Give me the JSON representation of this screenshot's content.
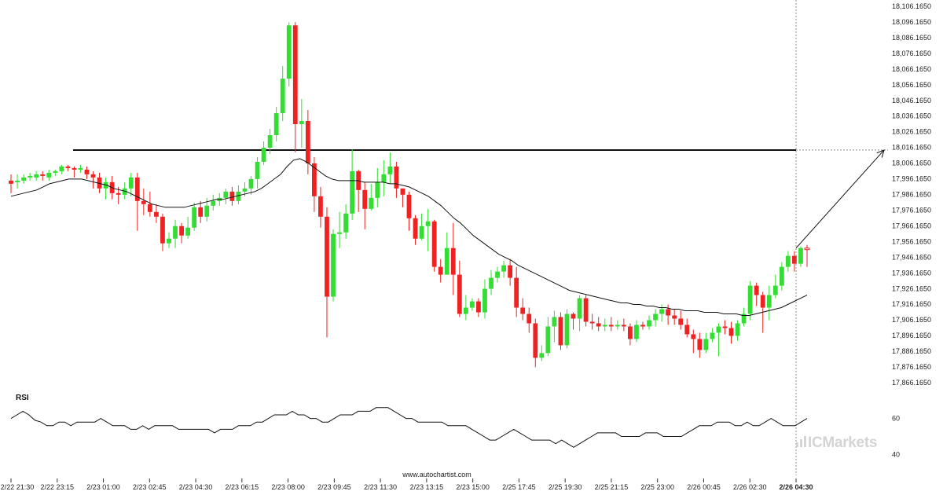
{
  "chart_data": {
    "type": "candlestick",
    "title": "",
    "xlabel": "",
    "ylabel": "",
    "ylim": [
      17856.165,
      18108.165
    ],
    "y_ticks": [
      "18,106.1650",
      "18,096.1650",
      "18,086.1650",
      "18,076.1650",
      "18,066.1650",
      "18,056.1650",
      "18,046.1650",
      "18,036.1650",
      "18,026.1650",
      "18,016.1650",
      "18,006.1650",
      "17,996.1650",
      "17,986.1650",
      "17,976.1650",
      "17,966.1650",
      "17,956.1650",
      "17,946.1650",
      "17,936.1650",
      "17,926.1650",
      "17,916.1650",
      "17,906.1650",
      "17,896.1650",
      "17,886.1650",
      "17,876.1650",
      "17,866.1650"
    ],
    "x_ticks": [
      "2/22 21:30",
      "2/22 23:15",
      "2/23 01:00",
      "2/23 02:45",
      "2/23 04:30",
      "2/23 06:15",
      "2/23 08:00",
      "2/23 09:45",
      "2/23 11:30",
      "2/23 13:15",
      "2/23 15:00",
      "2/25 17:45",
      "2/25 19:30",
      "2/25 21:15",
      "2/25 23:00",
      "2/26 00:45",
      "2/26 02:30",
      "2/26 04:30"
    ],
    "x_ticks_bold_index": 17,
    "resistance_level": 18014.5,
    "projection": {
      "from": 17952.0,
      "to": 18014.5
    },
    "candles": [
      [
        17995,
        17993,
        17999,
        17987
      ],
      [
        17994,
        17995,
        17999,
        17990
      ],
      [
        17995,
        17997,
        17999,
        17993
      ],
      [
        17997,
        17998,
        18000,
        17995
      ],
      [
        17997,
        17999,
        18001,
        17995
      ],
      [
        17999,
        17998,
        18001,
        17995
      ],
      [
        17997,
        18000,
        18002,
        17995
      ],
      [
        18000,
        18001,
        18002,
        17998
      ],
      [
        18001,
        18004,
        18005,
        17999
      ],
      [
        18004,
        18003,
        18005,
        18001
      ],
      [
        18003,
        18002,
        18004,
        17997
      ],
      [
        18002,
        18003,
        18005,
        18000
      ],
      [
        18002,
        17999,
        18004,
        17996
      ],
      [
        17999,
        17997,
        18001,
        17990
      ],
      [
        17997,
        17990,
        18000,
        17987
      ],
      [
        17990,
        17994,
        17997,
        17983
      ],
      [
        17994,
        17987,
        17998,
        17983
      ],
      [
        17987,
        17986,
        17991,
        17980
      ],
      [
        17986,
        17990,
        17994,
        17983
      ],
      [
        17990,
        17997,
        18000,
        17985
      ],
      [
        17997,
        17982,
        18000,
        17963
      ],
      [
        17982,
        17980,
        17990,
        17973
      ],
      [
        17980,
        17975,
        17988,
        17972
      ],
      [
        17975,
        17972,
        17980,
        17968
      ],
      [
        17972,
        17955,
        17974,
        17950
      ],
      [
        17955,
        17958,
        17962,
        17952
      ],
      [
        17958,
        17966,
        17970,
        17952
      ],
      [
        17966,
        17960,
        17968,
        17955
      ],
      [
        17960,
        17965,
        17972,
        17958
      ],
      [
        17965,
        17978,
        17981,
        17963
      ],
      [
        17978,
        17972,
        17982,
        17968
      ],
      [
        17972,
        17979,
        17984,
        17969
      ],
      [
        17979,
        17982,
        17986,
        17976
      ],
      [
        17982,
        17984,
        17987,
        17979
      ],
      [
        17984,
        17988,
        17990,
        17980
      ],
      [
        17988,
        17982,
        17991,
        17979
      ],
      [
        17982,
        17988,
        17992,
        17980
      ],
      [
        17988,
        17990,
        17994,
        17985
      ],
      [
        17990,
        17996,
        17998,
        17986
      ],
      [
        17996,
        18007,
        18010,
        17990
      ],
      [
        18007,
        18016,
        18020,
        18005
      ],
      [
        18016,
        18024,
        18028,
        18012
      ],
      [
        18024,
        18038,
        18042,
        18020
      ],
      [
        18038,
        18060,
        18068,
        18033
      ],
      [
        18060,
        18094,
        18096,
        18055
      ],
      [
        18094,
        18031,
        18096,
        18013
      ],
      [
        18031,
        18033,
        18047,
        18016
      ],
      [
        18033,
        18006,
        18040,
        17999
      ],
      [
        18006,
        17985,
        18010,
        17975
      ],
      [
        17985,
        17972,
        17991,
        17965
      ],
      [
        17972,
        17921,
        17978,
        17895
      ],
      [
        17921,
        17961,
        17964,
        17918
      ],
      [
        17961,
        17962,
        17975,
        17952
      ],
      [
        17962,
        17974,
        17980,
        17958
      ],
      [
        17974,
        18001,
        18015,
        17970
      ],
      [
        18001,
        17989,
        18002,
        17975
      ],
      [
        17989,
        17977,
        17994,
        17964
      ],
      [
        17977,
        17984,
        17993,
        17976
      ],
      [
        17984,
        17994,
        18003,
        17978
      ],
      [
        17994,
        17999,
        18008,
        17985
      ],
      [
        17999,
        18004,
        18013,
        17993
      ],
      [
        18004,
        17990,
        18007,
        17984
      ],
      [
        17990,
        17986,
        17990,
        17978
      ],
      [
        17986,
        17971,
        17988,
        17963
      ],
      [
        17971,
        17958,
        17973,
        17954
      ],
      [
        17958,
        17966,
        17974,
        17957
      ],
      [
        17966,
        17969,
        17977,
        17950
      ],
      [
        17969,
        17940,
        17970,
        17937
      ],
      [
        17940,
        17935,
        17945,
        17930
      ],
      [
        17935,
        17952,
        17962,
        17938
      ],
      [
        17952,
        17935,
        17968,
        17922
      ],
      [
        17935,
        17910,
        17944,
        17908
      ],
      [
        17910,
        17914,
        17922,
        17906
      ],
      [
        17914,
        17918,
        17920,
        17912
      ],
      [
        17918,
        17911,
        17920,
        17908
      ],
      [
        17911,
        17926,
        17932,
        17907
      ],
      [
        17926,
        17933,
        17938,
        17922
      ],
      [
        17933,
        17937,
        17940,
        17930
      ],
      [
        17937,
        17941,
        17944,
        17933
      ],
      [
        17941,
        17933,
        17945,
        17928
      ],
      [
        17933,
        17914,
        17940,
        17908
      ],
      [
        17914,
        17910,
        17920,
        17906
      ],
      [
        17910,
        17904,
        17914,
        17898
      ],
      [
        17904,
        17882,
        17907,
        17876
      ],
      [
        17882,
        17885,
        17890,
        17880
      ],
      [
        17885,
        17902,
        17908,
        17883
      ],
      [
        17902,
        17908,
        17912,
        17892
      ],
      [
        17908,
        17890,
        17911,
        17887
      ],
      [
        17890,
        17910,
        17913,
        17888
      ],
      [
        17910,
        17907,
        17911,
        17900
      ],
      [
        17907,
        17920,
        17922,
        17899
      ],
      [
        17920,
        17905,
        17922,
        17902
      ],
      [
        17905,
        17904,
        17910,
        17900
      ],
      [
        17904,
        17902,
        17908,
        17899
      ],
      [
        17902,
        17903,
        17907,
        17899
      ],
      [
        17903,
        17902,
        17908,
        17899
      ],
      [
        17902,
        17903,
        17906,
        17900
      ],
      [
        17903,
        17902,
        17907,
        17899
      ],
      [
        17902,
        17894,
        17904,
        17890
      ],
      [
        17894,
        17903,
        17906,
        17892
      ],
      [
        17903,
        17902,
        17905,
        17900
      ],
      [
        17902,
        17906,
        17909,
        17900
      ],
      [
        17906,
        17910,
        17913,
        17902
      ],
      [
        17910,
        17913,
        17916,
        17905
      ],
      [
        17913,
        17909,
        17916,
        17903
      ],
      [
        17909,
        17907,
        17913,
        17903
      ],
      [
        17907,
        17903,
        17912,
        17900
      ],
      [
        17903,
        17897,
        17907,
        17895
      ],
      [
        17897,
        17894,
        17900,
        17885
      ],
      [
        17894,
        17887,
        17898,
        17882
      ],
      [
        17887,
        17894,
        17898,
        17885
      ],
      [
        17894,
        17898,
        17901,
        17892
      ],
      [
        17898,
        17902,
        17904,
        17883
      ],
      [
        17902,
        17901,
        17906,
        17897
      ],
      [
        17901,
        17896,
        17905,
        17891
      ],
      [
        17896,
        17904,
        17906,
        17893
      ],
      [
        17904,
        17910,
        17914,
        17902
      ],
      [
        17910,
        17928,
        17931,
        17906
      ],
      [
        17928,
        17922,
        17930,
        17915
      ],
      [
        17922,
        17914,
        17924,
        17898
      ],
      [
        17914,
        17922,
        17928,
        17906
      ],
      [
        17922,
        17928,
        17935,
        17920
      ],
      [
        17928,
        17940,
        17943,
        17925
      ],
      [
        17940,
        17947,
        17950,
        17937
      ],
      [
        17947,
        17942,
        17950,
        17937
      ],
      [
        17942,
        17952,
        17953,
        17940
      ],
      [
        17952,
        17951,
        17954,
        17940
      ]
    ],
    "ma": [
      17985,
      17986,
      17987,
      17988,
      17989,
      17991,
      17993,
      17994,
      17995,
      17996,
      17996,
      17996,
      17995,
      17994,
      17993,
      17992,
      17990,
      17989,
      17988,
      17986,
      17984,
      17982,
      17980,
      17979,
      17978,
      17978,
      17978,
      17978,
      17979,
      17980,
      17981,
      17982,
      17983,
      17983,
      17984,
      17985,
      17986,
      17987,
      17988,
      17990,
      17993,
      17996,
      17999,
      18004,
      18008,
      18009,
      18007,
      18004,
      18001,
      17998,
      17996,
      17995,
      17995,
      17995,
      17995,
      17994,
      17994,
      17994,
      17994,
      17993,
      17993,
      17992,
      17991,
      17989,
      17987,
      17985,
      17982,
      17979,
      17975,
      17971,
      17968,
      17964,
      17960,
      17957,
      17954,
      17951,
      17948,
      17946,
      17944,
      17941,
      17939,
      17937,
      17935,
      17933,
      17931,
      17929,
      17927,
      17925,
      17924,
      17923,
      17922,
      17921,
      17920,
      17919,
      17918,
      17917,
      17917,
      17916,
      17916,
      17915,
      17915,
      17914,
      17914,
      17913,
      17913,
      17912,
      17912,
      17912,
      17911,
      17911,
      17911,
      17910,
      17910,
      17910,
      17909,
      17909,
      17910,
      17911,
      17912,
      17913,
      17914,
      17916,
      17918,
      17920,
      17922
    ],
    "rsi": {
      "title": "RSI",
      "ylim": [
        35,
        72
      ],
      "y_ticks": [
        "60",
        "40"
      ],
      "values": [
        60,
        62,
        64,
        62,
        59,
        58,
        56,
        56,
        58,
        58,
        56,
        58,
        58,
        58,
        58,
        60,
        58,
        56,
        56,
        56,
        54,
        54,
        56,
        54,
        56,
        56,
        56,
        56,
        54,
        54,
        54,
        54,
        54,
        54,
        52,
        54,
        54,
        54,
        56,
        56,
        56,
        58,
        58,
        60,
        62,
        62,
        62,
        64,
        62,
        62,
        60,
        60,
        58,
        58,
        60,
        62,
        62,
        62,
        64,
        64,
        64,
        66,
        66,
        66,
        64,
        62,
        60,
        60,
        58,
        58,
        58,
        58,
        58,
        56,
        56,
        56,
        56,
        54,
        52,
        50,
        48,
        48,
        50,
        52,
        54,
        52,
        50,
        48,
        48,
        48,
        48,
        46,
        48,
        46,
        44,
        46,
        48,
        50,
        52,
        52,
        52,
        52,
        50,
        50,
        50,
        50,
        52,
        52,
        52,
        50,
        50,
        50,
        50,
        52,
        54,
        56,
        56,
        56,
        58,
        58,
        58,
        56,
        56,
        58,
        56,
        56,
        58,
        60,
        58,
        56,
        56,
        56,
        58,
        60
      ]
    }
  },
  "source": "www.autochartist.com",
  "brand": {
    "logo_text": "ICMarkets"
  },
  "colors": {
    "up": "#33dd33",
    "down": "#ee2222",
    "resistance": "#111111",
    "ma": "#111111",
    "projection": "#111111"
  }
}
